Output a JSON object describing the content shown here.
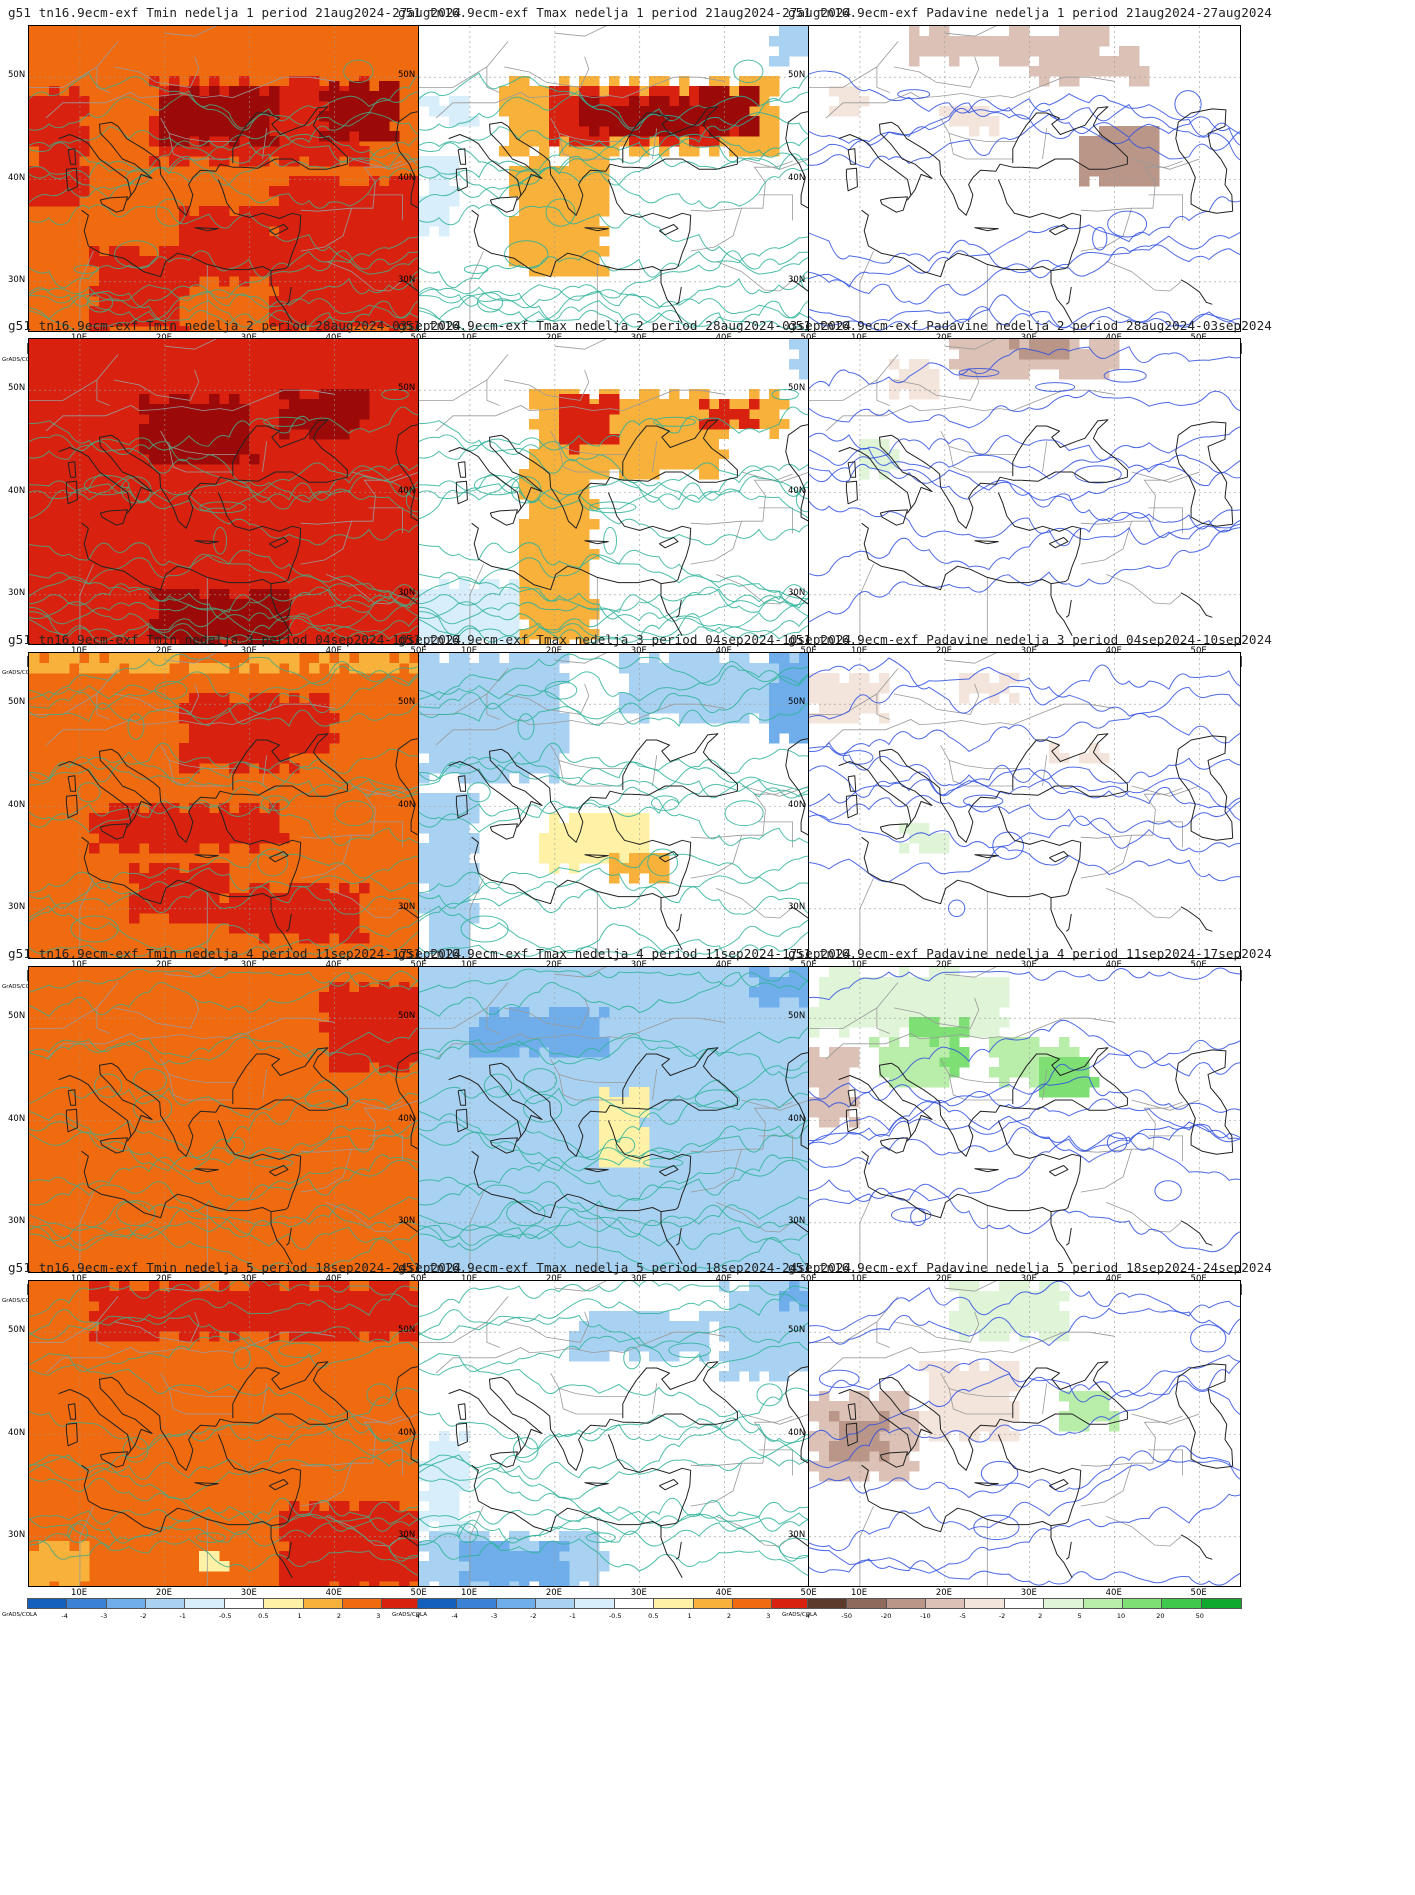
{
  "grads_label": "GrADS/COLA",
  "lat_labels": [
    "50N",
    "40N",
    "30N"
  ],
  "lon_labels": [
    "10E",
    "20E",
    "30E",
    "40E",
    "50E"
  ],
  "colorbars": {
    "temp": {
      "labels": [
        "-4",
        "-3",
        "-2",
        "-1",
        "-0.5",
        "0.5",
        "1",
        "2",
        "3",
        "4"
      ],
      "colors": [
        "#1560bd",
        "#3b82d6",
        "#6faeea",
        "#a9d2f2",
        "#d9eefb",
        "#ffffff",
        "#fff2a6",
        "#f8b13a",
        "#f06a10",
        "#d8220f",
        "#9b0a08"
      ]
    },
    "precip": {
      "labels": [
        "-50",
        "-20",
        "-10",
        "-5",
        "-2",
        "2",
        "5",
        "10",
        "20",
        "50"
      ],
      "colors": [
        "#5c3a2c",
        "#8e6a5c",
        "#b99688",
        "#dcc2b6",
        "#f3e4dc",
        "#ffffff",
        "#e0f5d8",
        "#b9edaa",
        "#7edf74",
        "#3fc94c",
        "#10a92f"
      ]
    }
  },
  "panels": [
    {
      "title": "g51 tn16.9ecm-exf Tmin nedelja 1 period 21aug2024-27aug2024",
      "var": "tmin",
      "week": 1
    },
    {
      "title": "g51 tn16.9ecm-exf Tmax nedelja 1 period 21aug2024-27aug2024",
      "var": "tmax",
      "week": 1
    },
    {
      "title": "g51 tn16.9ecm-exf Padavine nedelja 1 period 21aug2024-27aug2024",
      "var": "precip",
      "week": 1
    },
    {
      "title": "g51 tn16.9ecm-exf Tmin nedelja 2 period 28aug2024-03sep2024",
      "var": "tmin",
      "week": 2
    },
    {
      "title": "g51 tn16.9ecm-exf Tmax nedelja 2 period 28aug2024-03sep2024",
      "var": "tmax",
      "week": 2
    },
    {
      "title": "g51 tn16.9ecm-exf Padavine nedelja 2 period 28aug2024-03sep2024",
      "var": "precip",
      "week": 2
    },
    {
      "title": "g51 tn16.9ecm-exf Tmin nedelja 3 period 04sep2024-10sep2024",
      "var": "tmin",
      "week": 3
    },
    {
      "title": "g51 tn16.9ecm-exf Tmax nedelja 3 period 04sep2024-10sep2024",
      "var": "tmax",
      "week": 3
    },
    {
      "title": "g51 tn16.9ecm-exf Padavine nedelja 3 period 04sep2024-10sep2024",
      "var": "precip",
      "week": 3
    },
    {
      "title": "g51 tn16.9ecm-exf Tmin nedelja 4 period 11sep2024-17sep2024",
      "var": "tmin",
      "week": 4
    },
    {
      "title": "g51 tn16.9ecm-exf Tmax nedelja 4 period 11sep2024-17sep2024",
      "var": "tmax",
      "week": 4
    },
    {
      "title": "g51 tn16.9ecm-exf Padavine nedelja 4 period 11sep2024-17sep2024",
      "var": "precip",
      "week": 4
    },
    {
      "title": "g51 tn16.9ecm-exf Tmin nedelja 5 period 18sep2024-24sep2024",
      "var": "tmin",
      "week": 5
    },
    {
      "title": "g51 tn16.9ecm-exf Tmax nedelja 5 period 18sep2024-24sep2024",
      "var": "tmax",
      "week": 5
    },
    {
      "title": "g51 tn16.9ecm-exf Padavine nedelja 5 period 18sep2024-24sep2024",
      "var": "precip",
      "week": 5
    }
  ]
}
